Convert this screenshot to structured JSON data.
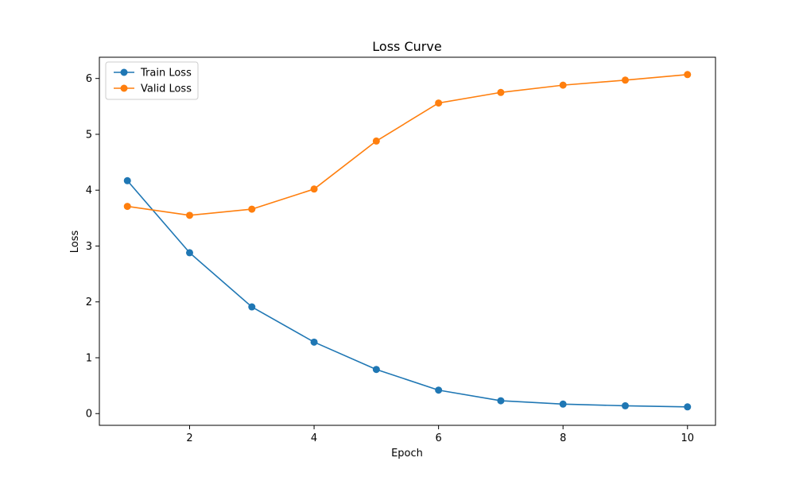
{
  "chart_data": {
    "type": "line",
    "title": "Loss Curve",
    "xlabel": "Epoch",
    "ylabel": "Loss",
    "x": [
      1,
      2,
      3,
      4,
      5,
      6,
      7,
      8,
      9,
      10
    ],
    "xlim": [
      0.55,
      10.45
    ],
    "ylim": [
      -0.21,
      6.38
    ],
    "xticks": [
      2,
      4,
      6,
      8,
      10
    ],
    "yticks": [
      0,
      1,
      2,
      3,
      4,
      5,
      6
    ],
    "grid": false,
    "legend_position": "top-left",
    "series": [
      {
        "name": "Train Loss",
        "color": "#1f77b4",
        "marker": "circle",
        "values": [
          4.17,
          2.88,
          1.91,
          1.28,
          0.79,
          0.42,
          0.23,
          0.17,
          0.14,
          0.12
        ]
      },
      {
        "name": "Valid Loss",
        "color": "#ff7f0e",
        "marker": "circle",
        "values": [
          3.71,
          3.55,
          3.66,
          4.02,
          4.88,
          5.56,
          5.75,
          5.88,
          5.97,
          6.07
        ]
      }
    ]
  }
}
